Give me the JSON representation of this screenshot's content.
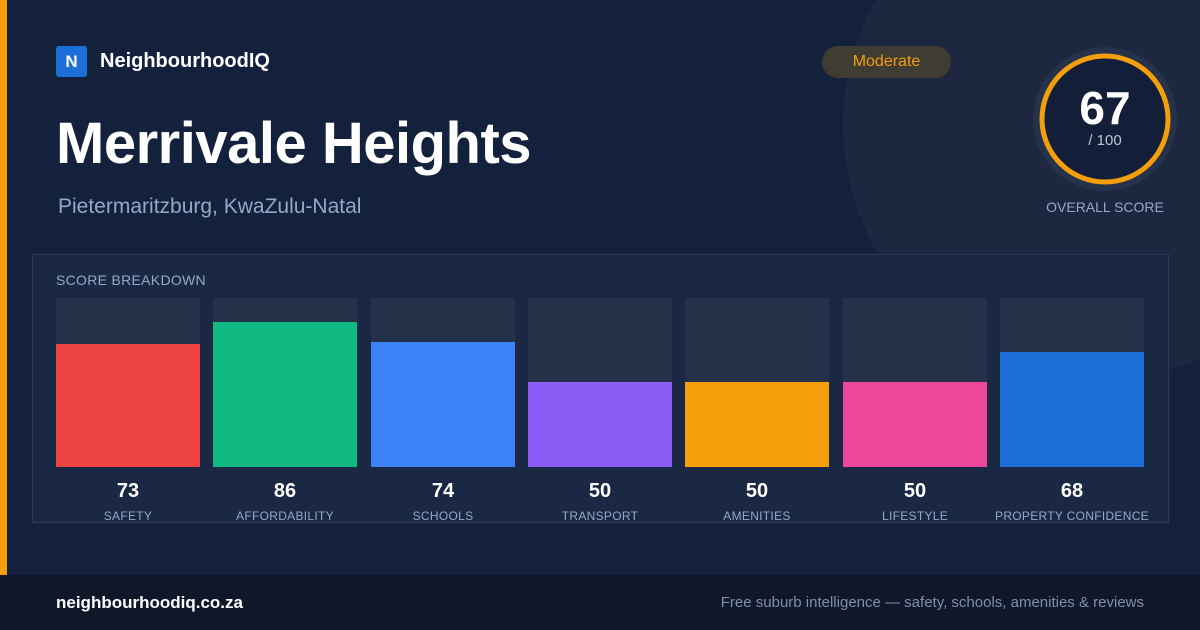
{
  "brand": {
    "logo_letter": "N",
    "name": "NeighbourhoodIQ"
  },
  "suburb": {
    "name": "Merrivale Heights",
    "location": "Pietermaritzburg, KwaZulu-Natal"
  },
  "rating_badge": {
    "label": "Moderate",
    "color": "#f59e0b"
  },
  "overall": {
    "score": "67",
    "max": "/ 100",
    "label": "OVERALL SCORE",
    "progress": 0.67,
    "ring_color": "#f59e0b"
  },
  "breakdown": {
    "title": "SCORE BREAKDOWN",
    "categories": [
      {
        "label": "SAFETY",
        "value": "73",
        "score": 73,
        "color": "#ef4444"
      },
      {
        "label": "AFFORDABILITY",
        "value": "86",
        "score": 86,
        "color": "#10b981"
      },
      {
        "label": "SCHOOLS",
        "value": "74",
        "score": 74,
        "color": "#3b82f6"
      },
      {
        "label": "TRANSPORT",
        "value": "50",
        "score": 50,
        "color": "#8b5cf6"
      },
      {
        "label": "AMENITIES",
        "value": "50",
        "score": 50,
        "color": "#f59e0b"
      },
      {
        "label": "LIFESTYLE",
        "value": "50",
        "score": 50,
        "color": "#ec4899"
      },
      {
        "label": "PROPERTY CONFIDENCE",
        "value": "68",
        "score": 68,
        "color": "#1d6fd8"
      }
    ]
  },
  "footer": {
    "url": "neighbourhoodiq.co.za",
    "tagline": "Free suburb intelligence — safety, schools, amenities & reviews"
  }
}
